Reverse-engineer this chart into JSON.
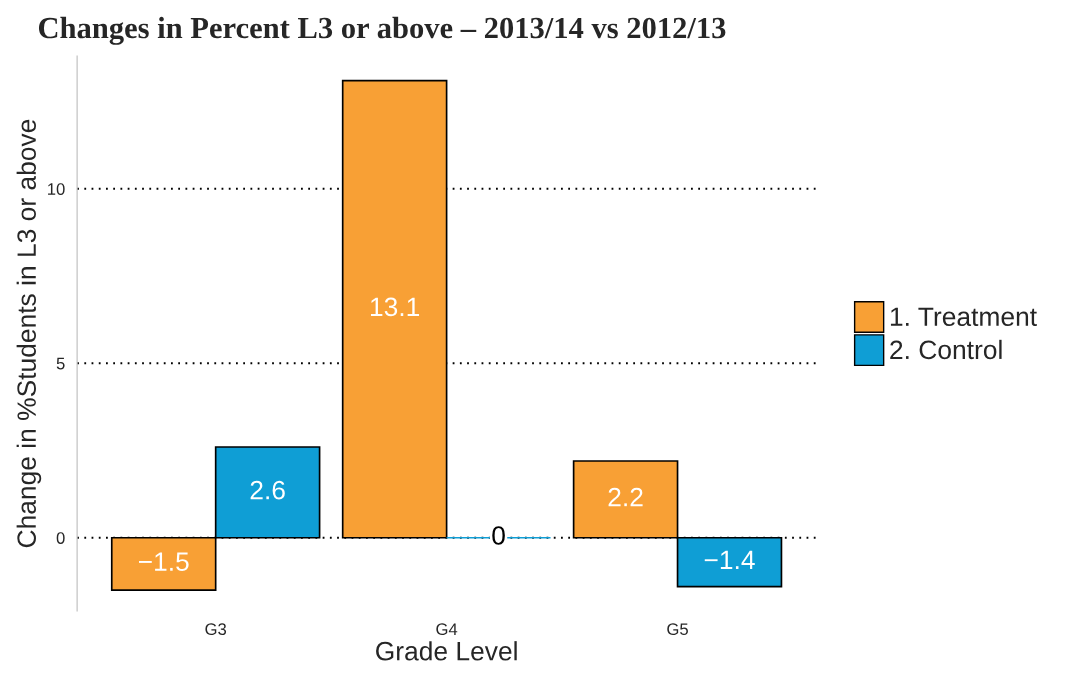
{
  "chart_data": {
    "type": "bar",
    "title": "Changes in Percent L3 or above – 2013/14 vs 2012/13",
    "xlabel": "Grade Level",
    "ylabel": "Change in %Students in L3 or above",
    "categories": [
      "G3",
      "G4",
      "G5"
    ],
    "series": [
      {
        "name": "1. Treatment",
        "color": "#f8a035",
        "values": [
          -1.5,
          13.1,
          2.2
        ],
        "value_labels": [
          "−1.5",
          "13.1",
          "2.2"
        ]
      },
      {
        "name": "2. Control",
        "color": "#0f9ed5",
        "values": [
          2.6,
          0,
          -1.4
        ],
        "value_labels": [
          "2.6",
          "0",
          "−1.4"
        ]
      }
    ],
    "ylim": [
      -2.1,
      13.8
    ],
    "yticks": [
      0,
      5,
      10
    ],
    "grid": "y",
    "legend": "right"
  }
}
